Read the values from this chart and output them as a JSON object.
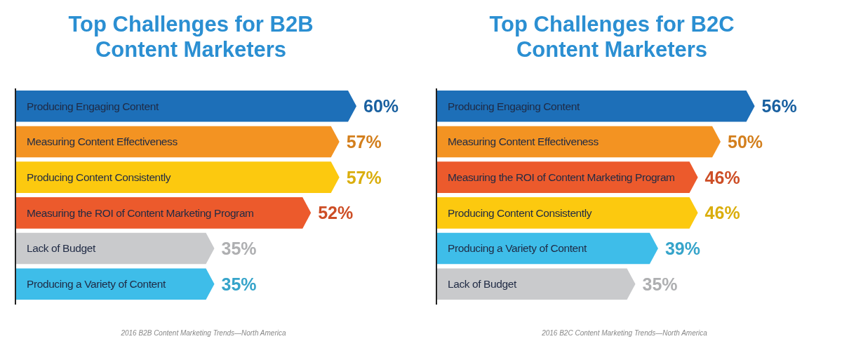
{
  "chart_data": [
    {
      "type": "bar",
      "orientation": "horizontal",
      "title": "Top Challenges for B2B Content Marketers",
      "categories": [
        "Producing Engaging Content",
        "Measuring Content Effectiveness",
        "Producing Content Consistently",
        "Measuring the ROI of Content Marketing Program",
        "Lack of Budget",
        "Producing a Variety of Content"
      ],
      "values": [
        60,
        57,
        57,
        52,
        35,
        35
      ],
      "value_labels": [
        "60%",
        "57%",
        "57%",
        "52%",
        "35%",
        "35%"
      ],
      "colors": [
        "#1d6fb8",
        "#f39322",
        "#fcc90f",
        "#ec5a2c",
        "#c9cacc",
        "#3ebde9"
      ],
      "annotations": [
        "2016 B2B Content Marketing Trends—North America"
      ]
    },
    {
      "type": "bar",
      "orientation": "horizontal",
      "title": "Top Challenges for B2C Content Marketers",
      "categories": [
        "Producing Engaging Content",
        "Measuring Content Effectiveness",
        "Measuring the ROI of Content Marketing Program",
        "Producing Content Consistently",
        "Producing a Variety of Content",
        "Lack of Budget"
      ],
      "values": [
        56,
        50,
        46,
        46,
        39,
        35
      ],
      "value_labels": [
        "56%",
        "50%",
        "46%",
        "46%",
        "39%",
        "35%"
      ],
      "colors": [
        "#1d6fb8",
        "#f39322",
        "#ec5a2c",
        "#fcc90f",
        "#3ebde9",
        "#c9cacc"
      ],
      "annotations": [
        "2016 B2C Content Marketing Trends—North America"
      ]
    }
  ]
}
